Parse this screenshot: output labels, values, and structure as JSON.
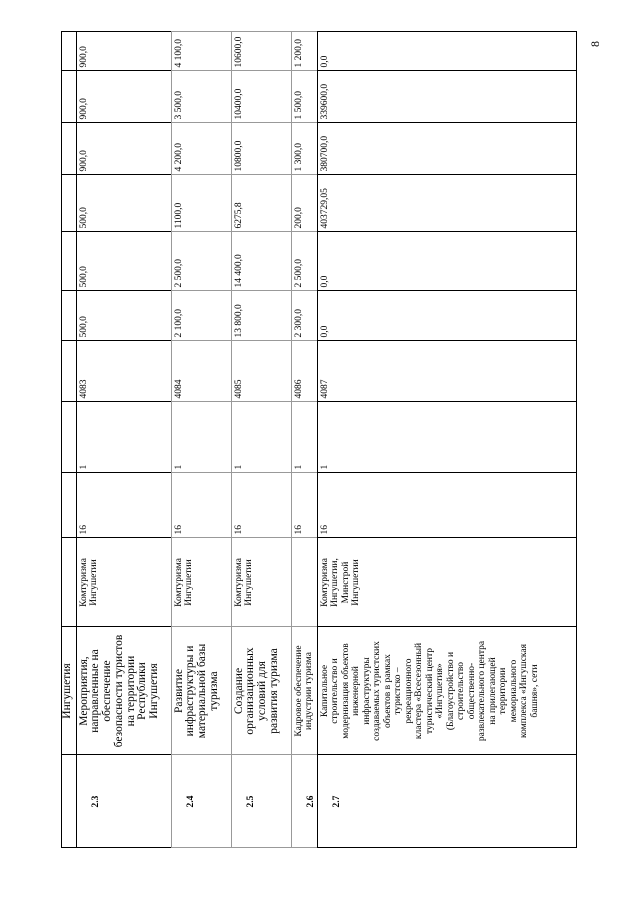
{
  "page_number": "8",
  "continued_row": {
    "name": "Ингушетия"
  },
  "rows": [
    {
      "num": "2.3",
      "name": "Мероприятия,\nнаправленные на\nобеспечение\nбезопасности туристов\nна территории\nРеспублики\nИнгушетия",
      "executor": "Комтуризма\nИнгушетии",
      "c1": "16",
      "c2": "1",
      "code": "4083",
      "values": [
        "500,0",
        "500,0",
        "500,0",
        "900,0",
        "900,0",
        "900,0"
      ]
    },
    {
      "num": "2.4",
      "name": "Развитие\nинфраструктуры и\nматериальной базы\nтуризма",
      "executor": "Комтуризма\nИнгушетии",
      "c1": "16",
      "c2": "1",
      "code": "4084",
      "values": [
        "2 100,0",
        "2 500,0",
        "1100,0",
        "4 200,0",
        "3 500,0",
        "4 100,0"
      ]
    },
    {
      "num": "2.5",
      "name": "Создание\nорганизационных\nусловий для\nразвития туризма",
      "executor": "Комтуризма\nИнгушетии",
      "c1": "16",
      "c2": "1",
      "code": "4085",
      "values": [
        "13 800,0",
        "14 400,0",
        "6275,8",
        "10800,0",
        "10400,0",
        "10600,0"
      ]
    },
    {
      "num": "2.6",
      "name": "Кадровое обеспечение\nиндустрии туризма",
      "executor": "",
      "c1": "16",
      "c2": "1",
      "code": "4086",
      "values": [
        "2 300,0",
        "2 500,0",
        "200,0",
        "1 300,0",
        "1 500,0",
        "1 200,0"
      ]
    },
    {
      "num": "2.7",
      "name": "Капитальное\nстроительство и\nмодернизация объектов\nинженерной\nинфраструктуры\nсоздаваемых туристских\nобъектов в рамках\nтуристско –\nрекреационного\nкластера «Всесезонный\nтуристический центр\n«Ингушетия»\n(Благоустройство и\nстроительство\nобщественно-\nразвлекательного центра\nна прилегающей\nтерритории\nмемориального\nкомплекса «Ингушская\nбашня», сети",
      "executor": "Комтуризма\nИнгушетии,\nМинстрой\nИнгушетии",
      "c1": "16",
      "c2": "1",
      "code": "4087",
      "values": [
        "0,0",
        "0,0",
        "403729,05",
        "380700,0",
        "339600,0",
        "0,0"
      ]
    }
  ]
}
